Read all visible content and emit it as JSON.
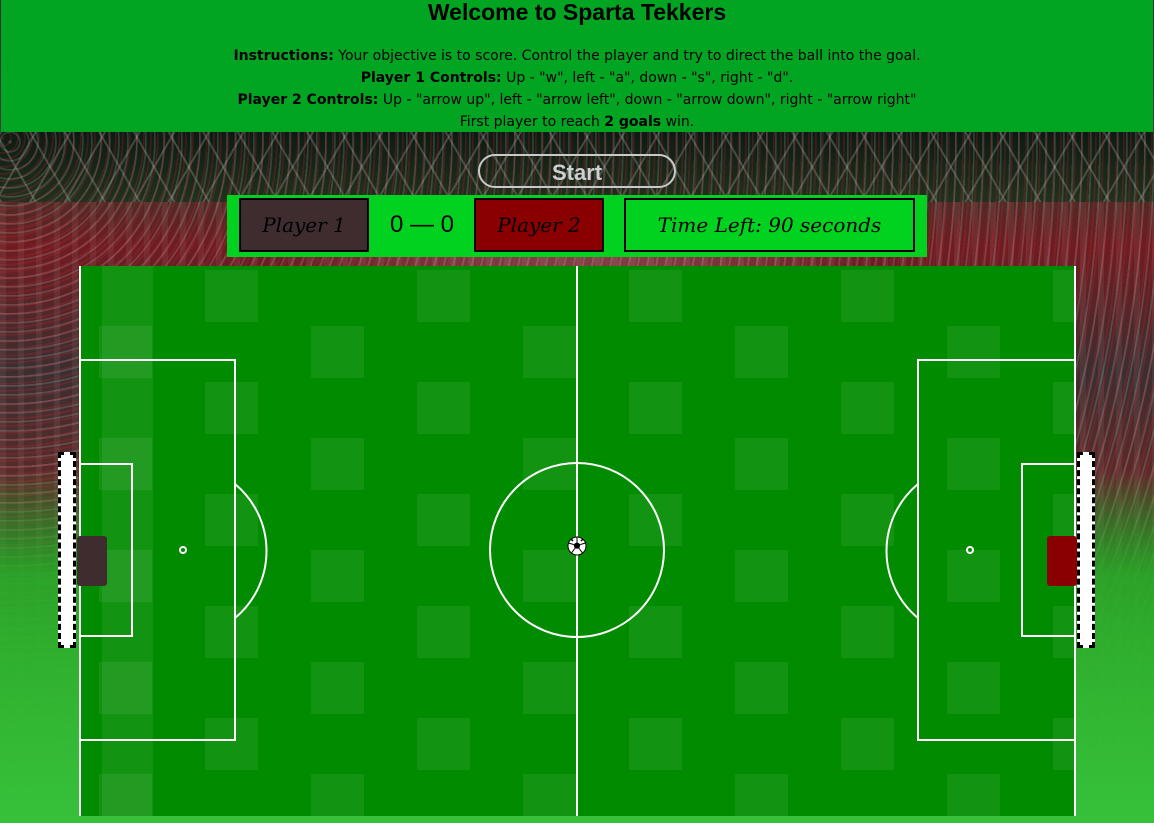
{
  "header": {
    "title": "Welcome to Sparta Tekkers",
    "instructions_label": "Instructions:",
    "instructions_text": " Your objective is to score. Control the player and try to direct the ball into the goal.",
    "p1_controls_label": "Player 1 Controls:",
    "p1_controls_text": " Up - \"w\", left - \"a\", down - \"s\", right - \"d\".",
    "p2_controls_label": "Player 2 Controls:",
    "p2_controls_text": " Up - \"arrow up\", left - \"arrow left\", down - \"arrow down\", right - \"arrow right\"",
    "win_prefix": "First player to reach ",
    "win_goals": "2 goals",
    "win_suffix": " win."
  },
  "controls": {
    "start_label": "Start"
  },
  "scoreboard": {
    "player1": "Player 1",
    "player2": "Player 2",
    "score": "0 — 0",
    "timer": "Time Left: 90 seconds"
  },
  "colors": {
    "header_bg": "#02a522",
    "scoreboard_bg": "#00d21f",
    "player1": "#3e2c2e",
    "player2": "#8a0000",
    "field": "#008b00"
  },
  "icons": {
    "ball": "soccer-ball-icon"
  }
}
